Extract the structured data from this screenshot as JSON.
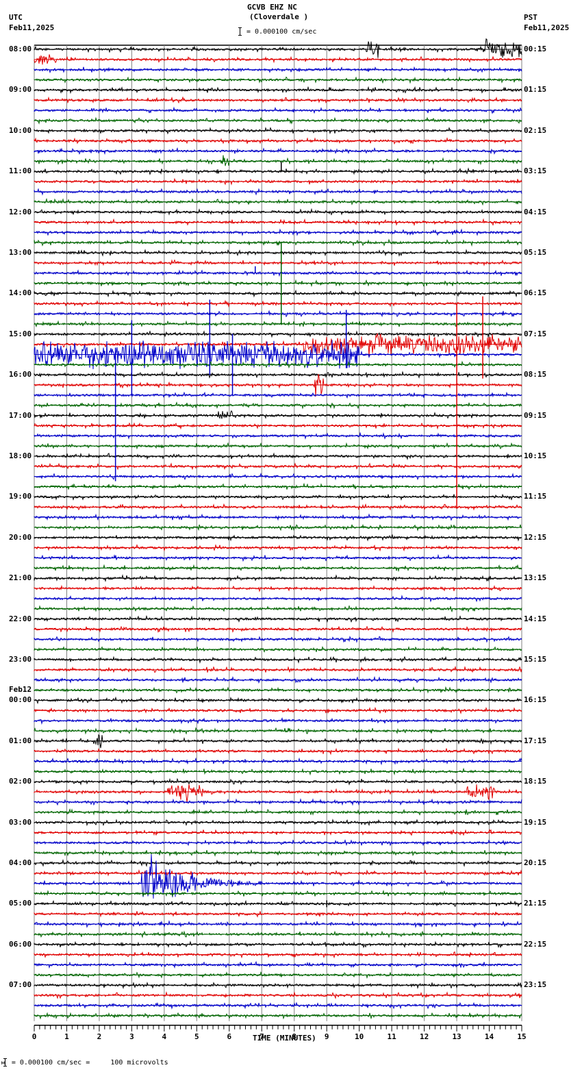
{
  "header": {
    "station": "GCVB EHZ NC",
    "location": "(Cloverdale )",
    "scale": "= 0.000100 cm/sec",
    "left_tz": "UTC",
    "left_date": "Feb11,2025",
    "right_tz": "PST",
    "right_date": "Feb11,2025"
  },
  "footer": {
    "scale_note": "= 0.000100 cm/sec =     100 microvolts",
    "x_axis_title": "TIME (MINUTES)"
  },
  "colors": {
    "trace_cycle": [
      "#000000",
      "#e00000",
      "#0000c8",
      "#006400"
    ],
    "grid": "#808080"
  },
  "chart_data": {
    "type": "line",
    "title": "GCVB EHZ NC (Cloverdale ) helicorder, Feb11,2025",
    "xlabel": "TIME (MINUTES)",
    "ylabel": "",
    "x_ticks": [
      0,
      1,
      2,
      3,
      4,
      5,
      6,
      7,
      8,
      9,
      10,
      11,
      12,
      13,
      14,
      15
    ],
    "xlim": [
      0,
      15
    ],
    "rows": 96,
    "row_minutes": 15,
    "left_labels": [
      {
        "row": 0,
        "text": "08:00"
      },
      {
        "row": 4,
        "text": "09:00"
      },
      {
        "row": 8,
        "text": "10:00"
      },
      {
        "row": 12,
        "text": "11:00"
      },
      {
        "row": 16,
        "text": "12:00"
      },
      {
        "row": 20,
        "text": "13:00"
      },
      {
        "row": 24,
        "text": "14:00"
      },
      {
        "row": 28,
        "text": "15:00"
      },
      {
        "row": 32,
        "text": "16:00"
      },
      {
        "row": 36,
        "text": "17:00"
      },
      {
        "row": 40,
        "text": "18:00"
      },
      {
        "row": 44,
        "text": "19:00"
      },
      {
        "row": 48,
        "text": "20:00"
      },
      {
        "row": 52,
        "text": "21:00"
      },
      {
        "row": 56,
        "text": "22:00"
      },
      {
        "row": 60,
        "text": "23:00"
      },
      {
        "row": 64,
        "text": "00:00",
        "date": "Feb12"
      },
      {
        "row": 68,
        "text": "01:00"
      },
      {
        "row": 72,
        "text": "02:00"
      },
      {
        "row": 76,
        "text": "03:00"
      },
      {
        "row": 80,
        "text": "04:00"
      },
      {
        "row": 84,
        "text": "05:00"
      },
      {
        "row": 88,
        "text": "06:00"
      },
      {
        "row": 92,
        "text": "07:00"
      }
    ],
    "right_labels": [
      {
        "row": 0,
        "text": "00:15"
      },
      {
        "row": 4,
        "text": "01:15"
      },
      {
        "row": 8,
        "text": "02:15"
      },
      {
        "row": 12,
        "text": "03:15"
      },
      {
        "row": 16,
        "text": "04:15"
      },
      {
        "row": 20,
        "text": "05:15"
      },
      {
        "row": 24,
        "text": "06:15"
      },
      {
        "row": 28,
        "text": "07:15"
      },
      {
        "row": 32,
        "text": "08:15"
      },
      {
        "row": 36,
        "text": "09:15"
      },
      {
        "row": 40,
        "text": "10:15"
      },
      {
        "row": 44,
        "text": "11:15"
      },
      {
        "row": 48,
        "text": "12:15"
      },
      {
        "row": 52,
        "text": "13:15"
      },
      {
        "row": 56,
        "text": "14:15"
      },
      {
        "row": 60,
        "text": "15:15"
      },
      {
        "row": 64,
        "text": "16:15"
      },
      {
        "row": 68,
        "text": "17:15"
      },
      {
        "row": 72,
        "text": "18:15"
      },
      {
        "row": 76,
        "text": "19:15"
      },
      {
        "row": 80,
        "text": "20:15"
      },
      {
        "row": 84,
        "text": "21:15"
      },
      {
        "row": 88,
        "text": "22:15"
      },
      {
        "row": 92,
        "text": "23:15"
      }
    ],
    "events": [
      {
        "row": 0,
        "start_min": 10.2,
        "end_min": 10.6,
        "amp": 9
      },
      {
        "row": 0,
        "start_min": 13.8,
        "end_min": 15.0,
        "amp": 10
      },
      {
        "row": 1,
        "start_min": 0.0,
        "end_min": 0.7,
        "amp": 5
      },
      {
        "row": 11,
        "start_min": 5.8,
        "end_min": 6.0,
        "amp": 7
      },
      {
        "row": 29,
        "start_min": 8.3,
        "end_min": 15.0,
        "amp": 12
      },
      {
        "row": 30,
        "start_min": 0.0,
        "end_min": 10.0,
        "amp": 16
      },
      {
        "row": 33,
        "start_min": 8.6,
        "end_min": 8.9,
        "amp": 14
      },
      {
        "row": 36,
        "start_min": 5.6,
        "end_min": 6.1,
        "amp": 5
      },
      {
        "row": 68,
        "start_min": 1.8,
        "end_min": 2.1,
        "amp": 8
      },
      {
        "row": 73,
        "start_min": 4.1,
        "end_min": 5.2,
        "amp": 9
      },
      {
        "row": 73,
        "start_min": 13.3,
        "end_min": 14.2,
        "amp": 9
      },
      {
        "row": 82,
        "start_min": 3.3,
        "end_min": 7.0,
        "amp": 45
      }
    ],
    "spikes": [
      {
        "row": 12,
        "min": 7.6,
        "up": 14,
        "down": 0
      },
      {
        "row": 23,
        "min": 7.6,
        "up": 60,
        "down": 60
      },
      {
        "row": 30,
        "min": 3.0,
        "up": 50,
        "down": 60
      },
      {
        "row": 30,
        "min": 5.4,
        "up": 80,
        "down": 30
      },
      {
        "row": 30,
        "min": 6.1,
        "up": 30,
        "down": 60
      },
      {
        "row": 30,
        "min": 2.5,
        "up": 10,
        "down": 185
      },
      {
        "row": 29,
        "min": 13.0,
        "up": 60,
        "down": 240
      },
      {
        "row": 29,
        "min": 13.8,
        "up": 70,
        "down": 50
      },
      {
        "row": 30,
        "min": 9.6,
        "up": 65,
        "down": 20
      },
      {
        "row": 22,
        "min": 6.8,
        "up": 10,
        "down": 0
      },
      {
        "row": 84,
        "min": 9.0,
        "up": 5,
        "down": 5
      }
    ]
  }
}
